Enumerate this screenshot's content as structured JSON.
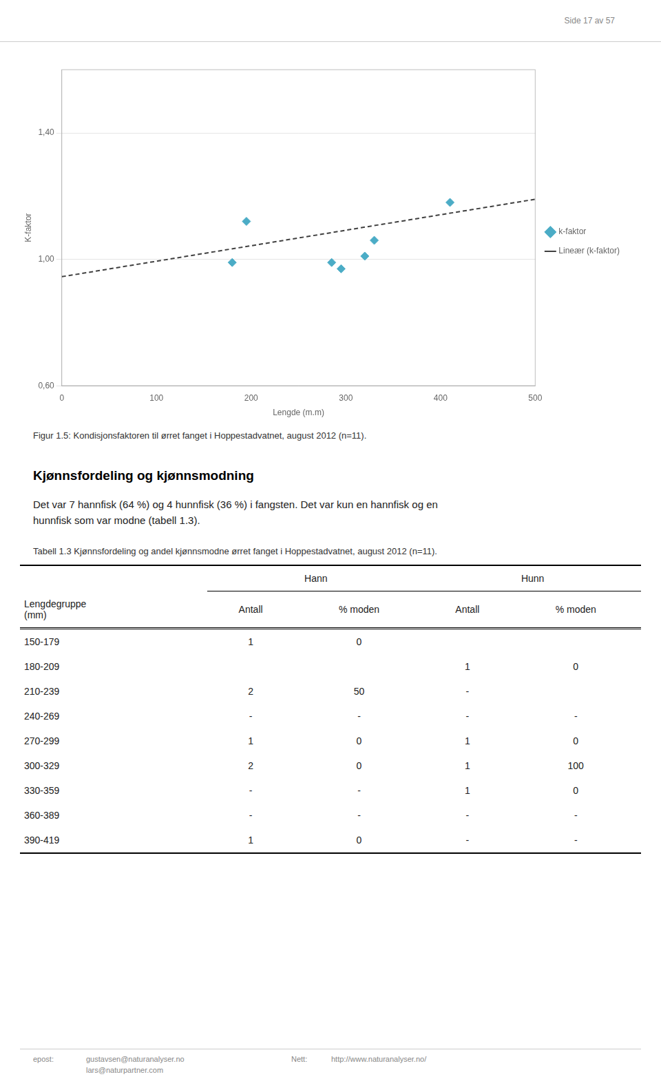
{
  "page_header": "Side 17 av 57",
  "chart_data": {
    "type": "scatter",
    "xlabel": "Lengde (m.m)",
    "ylabel": "K-faktor",
    "xlim": [
      0,
      500
    ],
    "xticks": [
      0,
      100,
      200,
      300,
      400,
      500
    ],
    "ylim": [
      0.6,
      1.6
    ],
    "yticks": [
      {
        "value": 0.6,
        "label": "0,60"
      },
      {
        "value": 1.0,
        "label": "1,00"
      },
      {
        "value": 1.4,
        "label": "1,40"
      }
    ],
    "grid": "y",
    "legend": "right",
    "series": [
      {
        "name": "k-faktor",
        "type": "scatter",
        "marker": "diamond",
        "color": "#4bacc6",
        "x": [
          180,
          195,
          285,
          295,
          320,
          330,
          410
        ],
        "values": [
          0.99,
          1.12,
          0.99,
          0.97,
          1.01,
          1.06,
          1.18
        ]
      },
      {
        "name": "Lineær (k-faktor)",
        "type": "line",
        "line_style": "dashed",
        "color": "#404040",
        "x": [
          0,
          500
        ],
        "values": [
          0.945,
          1.19
        ]
      }
    ]
  },
  "figure_caption": "Figur 1.5: Kondisjonsfaktoren til ørret fanget i Hoppestadvatnet, august 2012 (n=11).",
  "section_title": "Kjønnsfordeling og kjønnsmodning",
  "section_text": [
    "Det var 7 hannfisk (64 %) og 4 hunnfisk (36 %) i fangsten. Det var kun en hannfisk og en",
    "hunnfisk som var modne (tabell 1.3)."
  ],
  "table_caption": "Tabell 1.3 Kjønnsfordeling og andel kjønnsmodne ørret fanget i Hoppestadvatnet, august 2012 (n=11).",
  "table": {
    "group_headers": [
      "Hann",
      "Hunn"
    ],
    "column_headers": [
      "Lengdegruppe\n(mm)",
      "Antall",
      "% moden",
      "Antall",
      "% moden"
    ],
    "rows": [
      [
        "150-179",
        "1",
        "0",
        "",
        ""
      ],
      [
        "180-209",
        "",
        "",
        "1",
        "0"
      ],
      [
        "210-239",
        "2",
        "50",
        "-",
        ""
      ],
      [
        "240-269",
        "-",
        "-",
        "-",
        "-"
      ],
      [
        "270-299",
        "1",
        "0",
        "1",
        "0"
      ],
      [
        "300-329",
        "2",
        "0",
        "1",
        "100"
      ],
      [
        "330-359",
        "-",
        "-",
        "1",
        "0"
      ],
      [
        "360-389",
        "-",
        "-",
        "-",
        "-"
      ],
      [
        "390-419",
        "1",
        "0",
        "-",
        "-"
      ]
    ]
  },
  "footer": {
    "email_label": "epost:",
    "emails": [
      "gustavsen@naturanalyser.no",
      "lars@naturpartner.com"
    ],
    "web_label": "Nett:",
    "web_url": "http://www.naturanalyser.no/"
  }
}
